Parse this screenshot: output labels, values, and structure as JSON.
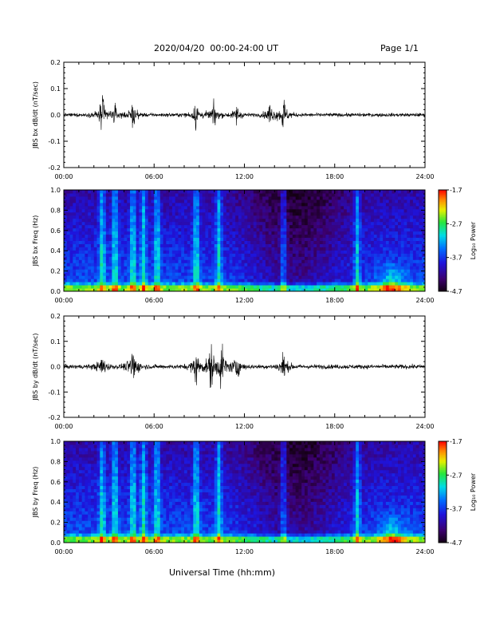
{
  "header": {
    "title": "2020/04/20  00:00-24:00 UT",
    "page": "Page 1/1"
  },
  "xaxis": {
    "title": "Universal Time (hh:mm)",
    "ticks": [
      "00:00",
      "06:00",
      "12:00",
      "18:00",
      "24:00"
    ]
  },
  "colorbar": {
    "label": "Log₁₀ Power",
    "ticks": [
      "-1.7",
      "-2.7",
      "-3.7",
      "-4.7"
    ],
    "range": [
      -4.7,
      -1.7
    ]
  },
  "chart_data": [
    {
      "type": "line",
      "ylabel": "JBS bx dB/dt (nT/sec)",
      "xlim": [
        0,
        24
      ],
      "ylim": [
        -0.2,
        0.2
      ],
      "yticks": [
        "0.2",
        "0.1",
        "0.0",
        "-0.1",
        "-0.2"
      ],
      "events": [
        {
          "t": 2.55,
          "amp": 0.11
        },
        {
          "t": 3.4,
          "amp": 0.04
        },
        {
          "t": 4.6,
          "amp": 0.06
        },
        {
          "t": 8.8,
          "amp": 0.07
        },
        {
          "t": 10.0,
          "amp": 0.06
        },
        {
          "t": 11.5,
          "amp": 0.05
        },
        {
          "t": 13.7,
          "amp": 0.06
        },
        {
          "t": 14.6,
          "amp": 0.09
        }
      ],
      "noise_floor": 0.012
    },
    {
      "type": "heatmap",
      "ylabel": "JBS bx Freq (Hz)",
      "xlim": [
        0,
        24
      ],
      "ylim": [
        0,
        1.0
      ],
      "yticks": [
        "1.0",
        "0.8",
        "0.6",
        "0.4",
        "0.2",
        "0.0"
      ],
      "zrange": [
        -4.7,
        -1.7
      ]
    },
    {
      "type": "line",
      "ylabel": "JBS by dB/dt (nT/sec)",
      "xlim": [
        0,
        24
      ],
      "ylim": [
        -0.2,
        0.2
      ],
      "yticks": [
        "0.2",
        "0.1",
        "0.0",
        "-0.1",
        "-0.2"
      ],
      "events": [
        {
          "t": 2.55,
          "amp": 0.07
        },
        {
          "t": 4.6,
          "amp": 0.12
        },
        {
          "t": 8.8,
          "amp": 0.1
        },
        {
          "t": 9.8,
          "amp": 0.12
        },
        {
          "t": 10.5,
          "amp": 0.13
        },
        {
          "t": 11.5,
          "amp": 0.07
        },
        {
          "t": 14.6,
          "amp": 0.08
        }
      ],
      "noise_floor": 0.015
    },
    {
      "type": "heatmap",
      "ylabel": "JBS by Freq (Hz)",
      "xlim": [
        0,
        24
      ],
      "ylim": [
        0,
        1.0
      ],
      "yticks": [
        "1.0",
        "0.8",
        "0.6",
        "0.4",
        "0.2",
        "0.0"
      ],
      "zrange": [
        -4.7,
        -1.7
      ]
    }
  ]
}
